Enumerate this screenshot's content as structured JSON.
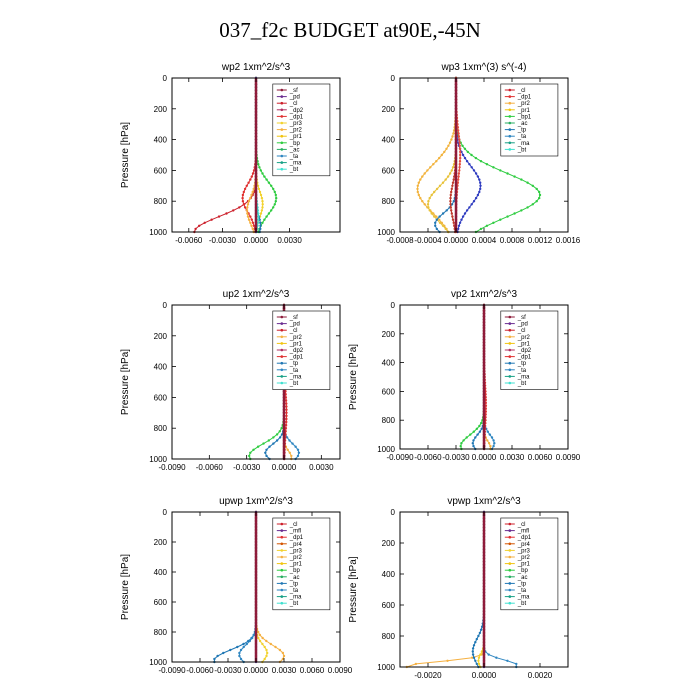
{
  "title": "037_f2c  BUDGET at90E,-45N",
  "chart_data": [
    {
      "type": "line",
      "title": "wp2  1xm^2/s^3",
      "ylabel": "Pressure [hPa]",
      "xlim": [
        -0.0075,
        0.0075
      ],
      "ylim": [
        1000,
        0
      ],
      "xticks": [
        -0.006,
        -0.003,
        0,
        0.003
      ],
      "xtick_labels": [
        "-0.0060",
        "-0.0030",
        "0.0000",
        "0.0030"
      ],
      "yticks": [
        0,
        200,
        400,
        600,
        800,
        1000
      ],
      "legend": [
        "_sf",
        "_pd",
        "_cl",
        "_dp2",
        "_dp1",
        "_pr3",
        "_pr2",
        "_pr1",
        "_bp",
        "_ac",
        "_ta",
        "_ma",
        "_bt"
      ],
      "series": [
        {
          "name": "_cl",
          "color": "#cc1f2a",
          "peak": -0.0055,
          "pos": 1000,
          "width": 140
        },
        {
          "name": "_dp1",
          "color": "#e03030",
          "peak": -0.0012,
          "pos": 780,
          "width": 130
        },
        {
          "name": "_pr2",
          "color": "#f5b041",
          "peak": -0.0008,
          "pos": 860,
          "width": 120
        },
        {
          "name": "_pr3",
          "color": "#f2d22e",
          "peak": 0.0006,
          "pos": 820,
          "width": 110
        },
        {
          "name": "_bp",
          "color": "#2ecc40",
          "peak": 0.0018,
          "pos": 780,
          "width": 150
        },
        {
          "name": "_ta",
          "color": "#1f77b4",
          "peak": 0.0004,
          "pos": 960,
          "width": 90
        },
        {
          "name": "_bt",
          "color": "#40e0d0",
          "peak": 0.0002,
          "pos": 900,
          "width": 100
        },
        {
          "name": "_pd",
          "color": "#6a2c91",
          "peak": 0.0,
          "pos": 500,
          "width": 100
        }
      ]
    },
    {
      "type": "line",
      "title": "wp3  1xm^(3) s^(-4)",
      "ylabel": "",
      "xlim": [
        -0.0008,
        0.0016
      ],
      "ylim": [
        1000,
        0
      ],
      "xticks": [
        -0.0008,
        -0.0004,
        0,
        0.0004,
        0.0008,
        0.0012,
        0.0016
      ],
      "xtick_labels": [
        "-0.0008",
        "-0.0004",
        "0.0000",
        "0.0004",
        "0.0008",
        "0.0012",
        "0.0016"
      ],
      "yticks": [
        0,
        200,
        400,
        600,
        800,
        1000
      ],
      "legend": [
        "_cl",
        "_dp1",
        "_pr2",
        "_pr1",
        "_bp1",
        "_ac",
        "_tp",
        "_ta",
        "_ma",
        "_bt"
      ],
      "series": [
        {
          "name": "_pr2",
          "color": "#f2b33d",
          "peak": -0.00055,
          "pos": 720,
          "width": 220
        },
        {
          "name": "_pr1",
          "color": "#e8c33b",
          "peak": -0.0004,
          "pos": 820,
          "width": 160
        },
        {
          "name": "_bp1",
          "color": "#2ecc40",
          "peak": 0.0012,
          "pos": 760,
          "width": 200
        },
        {
          "name": "_tp",
          "color": "#2f3cc0",
          "peak": 0.00035,
          "pos": 700,
          "width": 180
        },
        {
          "name": "_ta",
          "color": "#1f77b4",
          "peak": -0.0003,
          "pos": 950,
          "width": 100
        },
        {
          "name": "_cl",
          "color": "#c0392b",
          "peak": -8e-05,
          "pos": 800,
          "width": 150
        },
        {
          "name": "_dp1",
          "color": "#e74c3c",
          "peak": 6e-05,
          "pos": 500,
          "width": 200
        }
      ]
    },
    {
      "type": "line",
      "title": "up2  1xm^2/s^3",
      "ylabel": "Pressure [hPa]",
      "xlim": [
        -0.009,
        0.0045
      ],
      "ylim": [
        1000,
        0
      ],
      "xticks": [
        -0.009,
        -0.006,
        -0.003,
        0,
        0.003
      ],
      "xtick_labels": [
        "-0.0090",
        "-0.0060",
        "-0.0030",
        "0.0000",
        "0.0030"
      ],
      "yticks": [
        0,
        200,
        400,
        600,
        800,
        1000
      ],
      "legend": [
        "_sf",
        "_pd",
        "_cl",
        "_pr2",
        "_pr1",
        "_dp2",
        "_dp1",
        "_tp",
        "_ta",
        "_ma",
        "_bt"
      ],
      "series": [
        {
          "name": "_dp2",
          "color": "#2ecc40",
          "peak": -0.0028,
          "pos": 980,
          "width": 110
        },
        {
          "name": "_tp",
          "color": "#1f77b4",
          "peak": -0.0015,
          "pos": 960,
          "width": 80
        },
        {
          "name": "_ta",
          "color": "#2e86c1",
          "peak": 0.0012,
          "pos": 960,
          "width": 80
        },
        {
          "name": "_pr2",
          "color": "#f5b041",
          "peak": 0.0006,
          "pos": 990,
          "width": 60
        },
        {
          "name": "_cl",
          "color": "#e03030",
          "peak": 0.0002,
          "pos": 700,
          "width": 200
        },
        {
          "name": "_pd",
          "color": "#8e1b3a",
          "peak": 0.0,
          "pos": 500,
          "width": 100
        }
      ]
    },
    {
      "type": "line",
      "title": "vp2  1xm^2/s^3",
      "ylabel": "Pressure [hPa]",
      "xlim": [
        -0.009,
        0.009
      ],
      "ylim": [
        1000,
        0
      ],
      "xticks": [
        -0.009,
        -0.006,
        -0.003,
        0,
        0.003,
        0.006,
        0.009
      ],
      "xtick_labels": [
        "-0.0090",
        "-0.0060",
        "-0.0030",
        "0.0000",
        "0.0030",
        "0.0060",
        "0.0090"
      ],
      "yticks": [
        0,
        200,
        400,
        600,
        800,
        1000
      ],
      "legend": [
        "_sf",
        "_pd",
        "_cl",
        "_pr2",
        "_pr1",
        "_dp2",
        "_dp1",
        "_tp",
        "_ta",
        "_ma",
        "_bt"
      ],
      "series": [
        {
          "name": "_dp2",
          "color": "#2ecc40",
          "peak": -0.0025,
          "pos": 980,
          "width": 110
        },
        {
          "name": "_tp",
          "color": "#1f77b4",
          "peak": -0.0012,
          "pos": 960,
          "width": 80
        },
        {
          "name": "_ta",
          "color": "#2e86c1",
          "peak": 0.0011,
          "pos": 960,
          "width": 80
        },
        {
          "name": "_pr2",
          "color": "#f5b041",
          "peak": 0.0007,
          "pos": 990,
          "width": 60
        },
        {
          "name": "_cl",
          "color": "#e03030",
          "peak": 0.0002,
          "pos": 700,
          "width": 200
        },
        {
          "name": "_pd",
          "color": "#8e1b3a",
          "peak": 0.0,
          "pos": 500,
          "width": 100
        }
      ]
    },
    {
      "type": "line",
      "title": "upwp  1xm^2/s^3",
      "ylabel": "Pressure [hPa]",
      "xlim": [
        -0.009,
        0.009
      ],
      "ylim": [
        1000,
        0
      ],
      "xticks": [
        -0.009,
        -0.006,
        -0.003,
        0,
        0.003,
        0.006,
        0.009
      ],
      "xtick_labels": [
        "-0.0090",
        "-0.0060",
        "-0.0030",
        "0.0000",
        "0.0030",
        "0.0060",
        "0.0090"
      ],
      "yticks": [
        0,
        200,
        400,
        600,
        800,
        1000
      ],
      "legend": [
        "_cl",
        "_mfl",
        "_dp1",
        "_pr4",
        "_pr3",
        "_pr2",
        "_pr1",
        "_bp",
        "_ac",
        "_tp",
        "_ta",
        "_ma",
        "_bt"
      ],
      "series": [
        {
          "name": "_tp",
          "color": "#1f77b4",
          "peak": -0.0045,
          "pos": 990,
          "width": 100
        },
        {
          "name": "_ta",
          "color": "#2e86c1",
          "peak": -0.0018,
          "pos": 950,
          "width": 90
        },
        {
          "name": "_pr2",
          "color": "#f5b041",
          "peak": 0.003,
          "pos": 960,
          "width": 100
        },
        {
          "name": "_pr1",
          "color": "#f2d22e",
          "peak": 0.0012,
          "pos": 940,
          "width": 80
        },
        {
          "name": "_mfl",
          "color": "#6a2c91",
          "peak": 0.0,
          "pos": 500,
          "width": 100
        }
      ]
    },
    {
      "type": "line",
      "title": "vpwp  1xm^2/s^3",
      "ylabel": "Pressure [hPa]",
      "xlim": [
        -0.003,
        0.003
      ],
      "ylim": [
        1000,
        0
      ],
      "xticks": [
        -0.002,
        0,
        0.002
      ],
      "xtick_labels": [
        "-0.0020",
        "0.0000",
        "0.0020"
      ],
      "yticks": [
        0,
        200,
        400,
        600,
        800,
        1000
      ],
      "legend": [
        "_cl",
        "_mfl",
        "_dp1",
        "_pr4",
        "_pr3",
        "_pr2",
        "_pr1",
        "_bp",
        "_ac",
        "_tp",
        "_ta",
        "_ma",
        "_bt"
      ],
      "series": [
        {
          "name": "_pr2",
          "color": "#f5b041",
          "peak": -0.0028,
          "pos": 995,
          "width": 40
        },
        {
          "name": "_tp",
          "color": "#1f77b4",
          "peak": -0.0004,
          "pos": 900,
          "width": 120
        },
        {
          "name": "_ta",
          "color": "#2e86c1",
          "peak": 0.0012,
          "pos": 990,
          "width": 50
        },
        {
          "name": "_pr1",
          "color": "#f2d22e",
          "peak": -0.0002,
          "pos": 960,
          "width": 60
        },
        {
          "name": "_mfl",
          "color": "#6a2c91",
          "peak": 0.0,
          "pos": 500,
          "width": 100
        }
      ]
    }
  ]
}
